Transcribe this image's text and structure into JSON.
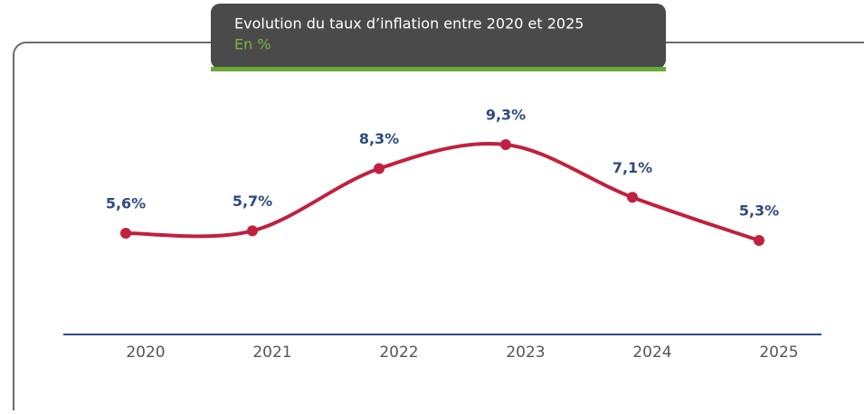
{
  "chart_data": {
    "type": "line",
    "title": "Evolution du taux d’inflation entre 2020 et 2025",
    "subtitle": "En %",
    "categories": [
      "2020",
      "2021",
      "2022",
      "2023",
      "2024",
      "2025"
    ],
    "values": [
      5.6,
      5.7,
      8.3,
      9.3,
      7.1,
      5.3
    ],
    "value_labels": [
      "5,6%",
      "5,7%",
      "8,3%",
      "9,3%",
      "7,1%",
      "5,3%"
    ],
    "color": "#c0213f",
    "smooth": true
  }
}
